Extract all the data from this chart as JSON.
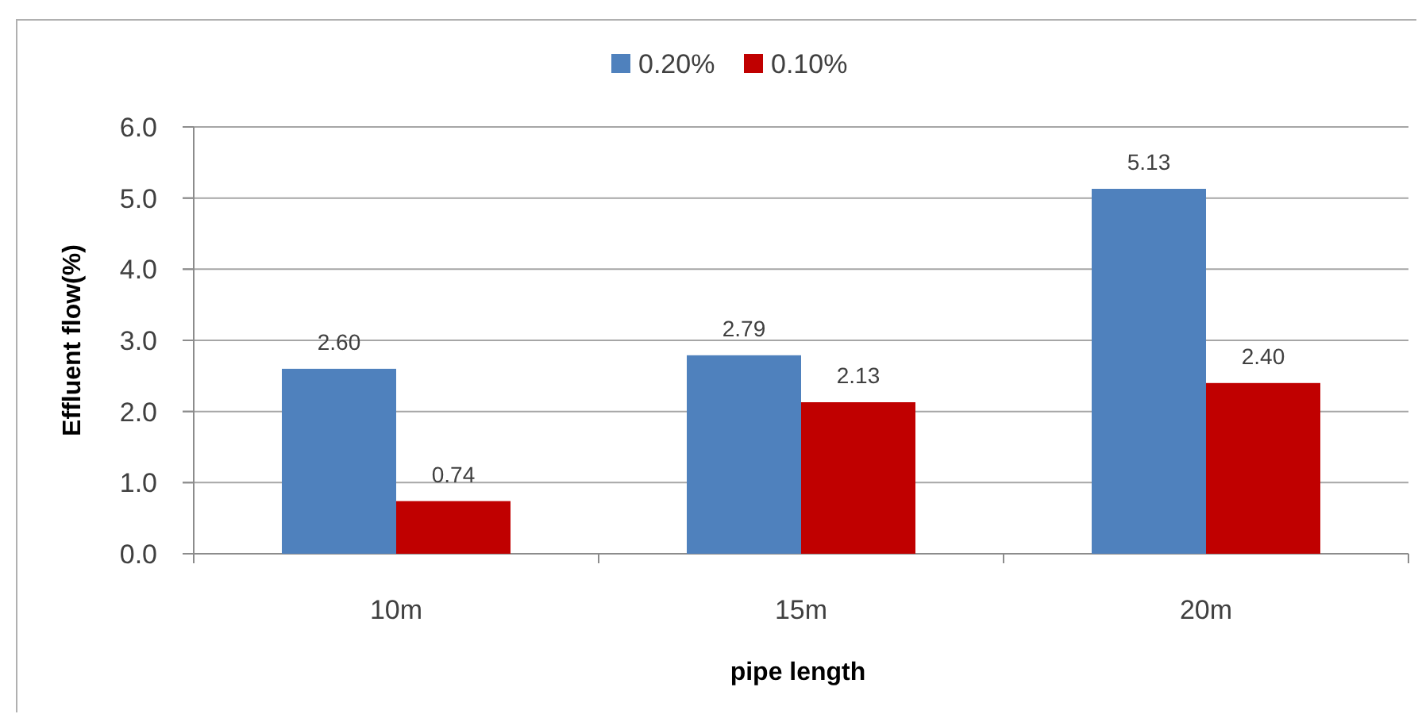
{
  "chart_data": {
    "type": "bar",
    "xlabel": "pipe length",
    "ylabel": "Effluent flow(%)",
    "categories": [
      "10m",
      "15m",
      "20m"
    ],
    "series": [
      {
        "name": "0.20%",
        "color": "#4f81bd",
        "values": [
          2.6,
          2.79,
          5.13
        ]
      },
      {
        "name": "0.10%",
        "color": "#c00000",
        "values": [
          0.74,
          2.13,
          2.4
        ]
      }
    ],
    "ylim": [
      0,
      6
    ],
    "yticks": [
      {
        "value": 0,
        "label": "0.0"
      },
      {
        "value": 1,
        "label": "1.0"
      },
      {
        "value": 2,
        "label": "2.0"
      },
      {
        "value": 3,
        "label": "3.0"
      },
      {
        "value": 4,
        "label": "4.0"
      },
      {
        "value": 5,
        "label": "5.0"
      },
      {
        "value": 6,
        "label": "6.0"
      }
    ],
    "grid": "y",
    "legend": "top",
    "value_labels": [
      [
        "2.60",
        "2.79",
        "5.13"
      ],
      [
        "0.74",
        "2.13",
        "2.40"
      ]
    ]
  }
}
